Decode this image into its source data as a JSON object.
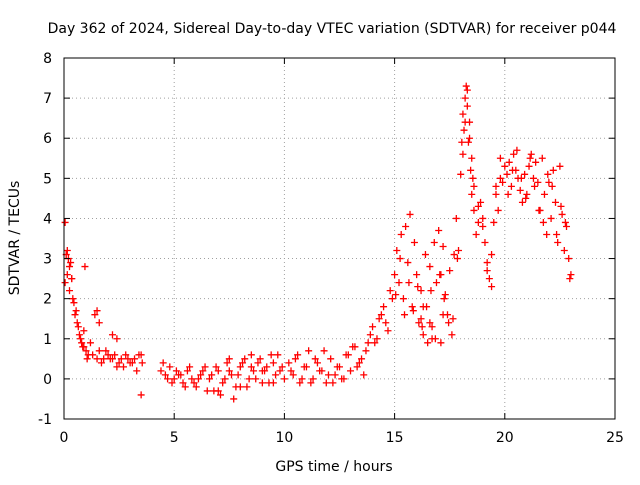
{
  "chart_data": {
    "type": "scatter",
    "title": "Day 362 of 2024, Sidereal Day-to-day VTEC variation (SDTVAR) for receiver p044",
    "xlabel": "GPS time / hours",
    "ylabel": "SDTVAR / TECUs",
    "xlim": [
      0,
      25
    ],
    "ylim": [
      -1,
      8
    ],
    "grid": true,
    "marker": "+",
    "colors": {
      "series": "#ff0000",
      "grid": "#a0a0a0",
      "axis": "#000000"
    },
    "x_ticks": [
      "0",
      "5",
      "10",
      "15",
      "20",
      "25"
    ],
    "y_ticks": [
      "-1",
      "0",
      "1",
      "2",
      "3",
      "4",
      "5",
      "6",
      "7",
      "8"
    ],
    "series": [
      {
        "name": "SDTVAR",
        "x": [
          0.05,
          0.1,
          0.15,
          0.2,
          0.25,
          0.3,
          0.35,
          0.4,
          0.5,
          0.6,
          0.7,
          0.8,
          0.9,
          1.0,
          1.1,
          1.2,
          1.4,
          1.6,
          1.8,
          2.0,
          2.2,
          2.4,
          2.6,
          2.8,
          3.0,
          3.2,
          3.4,
          3.55,
          0.05,
          0.15,
          0.25,
          0.35,
          0.45,
          0.55,
          0.65,
          0.75,
          0.85,
          0.95,
          1.05,
          1.3,
          1.5,
          1.7,
          1.9,
          2.1,
          2.3,
          2.5,
          2.7,
          2.9,
          3.1,
          3.3,
          3.5,
          1.5,
          1.6,
          2.2,
          2.4,
          0.9,
          3.5,
          4.4,
          4.6,
          4.8,
          5.0,
          5.2,
          5.4,
          5.6,
          5.8,
          6.0,
          6.2,
          6.4,
          6.6,
          6.8,
          7.0,
          7.2,
          7.4,
          7.6,
          7.8,
          8.0,
          8.2,
          8.4,
          8.6,
          8.8,
          9.0,
          9.2,
          9.4,
          9.6,
          9.8,
          10.0,
          4.5,
          4.7,
          4.9,
          5.1,
          5.3,
          5.5,
          5.7,
          5.9,
          6.1,
          6.3,
          6.5,
          6.7,
          6.9,
          7.1,
          7.3,
          7.5,
          7.7,
          7.9,
          8.1,
          8.3,
          8.5,
          8.7,
          8.9,
          9.1,
          9.3,
          9.5,
          9.7,
          9.9,
          7.0,
          7.5,
          8.0,
          8.5,
          9.0,
          9.5,
          10.2,
          10.4,
          10.6,
          10.8,
          11.0,
          11.2,
          11.4,
          11.6,
          11.8,
          12.0,
          12.2,
          12.4,
          12.6,
          12.8,
          13.0,
          13.2,
          13.4,
          13.6,
          13.8,
          14.0,
          14.2,
          14.4,
          14.6,
          14.8,
          15.0,
          10.3,
          10.5,
          10.7,
          10.9,
          11.1,
          11.3,
          11.5,
          11.7,
          11.9,
          12.1,
          12.3,
          12.5,
          12.7,
          12.9,
          13.1,
          13.3,
          13.5,
          13.7,
          13.9,
          14.1,
          14.3,
          14.5,
          14.7,
          14.9,
          15.1,
          15.2,
          15.3,
          15.4,
          15.5,
          15.6,
          15.7,
          15.8,
          15.9,
          16.0,
          16.1,
          16.2,
          16.3,
          16.4,
          16.5,
          16.6,
          16.7,
          16.8,
          16.9,
          17.0,
          17.1,
          17.2,
          17.3,
          17.4,
          17.5,
          17.6,
          17.7,
          17.8,
          17.9,
          18.0,
          15.05,
          15.25,
          15.45,
          15.65,
          15.85,
          16.05,
          16.25,
          16.45,
          16.65,
          16.85,
          17.05,
          17.25,
          17.45,
          17.65,
          17.85,
          18.05,
          18.1,
          18.15,
          18.2,
          18.25,
          18.3,
          18.35,
          18.4,
          18.45,
          18.5,
          18.55,
          18.6,
          18.7,
          18.8,
          18.9,
          19.0,
          19.1,
          19.2,
          19.3,
          19.4,
          19.5,
          19.6,
          19.7,
          19.8,
          19.9,
          20.0,
          18.1,
          18.2,
          18.3,
          18.4,
          18.5,
          18.6,
          18.8,
          19.0,
          19.2,
          19.4,
          19.6,
          19.8,
          20.1,
          20.2,
          20.3,
          20.4,
          20.5,
          20.6,
          20.7,
          20.8,
          20.9,
          21.0,
          21.1,
          21.2,
          21.3,
          21.4,
          21.5,
          21.6,
          21.7,
          21.8,
          21.9,
          22.0,
          22.1,
          22.2,
          22.3,
          22.4,
          22.5,
          22.6,
          22.7,
          22.8,
          22.9,
          23.0,
          20.15,
          20.35,
          20.55,
          20.75,
          20.95,
          21.15,
          21.35,
          21.55,
          21.75,
          21.95,
          22.15,
          22.35,
          22.55,
          22.75,
          22.95,
          16.6,
          16.7,
          17.1,
          17.2,
          16.2,
          16.3
        ],
        "y": [
          3.9,
          3.1,
          2.6,
          3.0,
          2.2,
          2.9,
          2.5,
          2.0,
          1.6,
          1.4,
          1.1,
          0.9,
          0.8,
          0.7,
          0.6,
          0.9,
          1.6,
          0.7,
          0.5,
          0.6,
          0.5,
          0.3,
          0.5,
          0.6,
          0.4,
          0.5,
          0.6,
          0.4,
          2.4,
          3.2,
          2.8,
          2.5,
          1.9,
          1.7,
          1.3,
          1.0,
          0.8,
          2.8,
          0.5,
          0.6,
          0.5,
          0.4,
          0.7,
          0.5,
          0.6,
          0.4,
          0.3,
          0.5,
          0.4,
          0.2,
          0.6,
          1.7,
          1.4,
          1.1,
          1.0,
          1.2,
          -0.4,
          0.2,
          0.1,
          0.3,
          0.0,
          0.1,
          -0.1,
          0.2,
          0.0,
          -0.2,
          0.1,
          0.3,
          0.0,
          -0.3,
          0.2,
          -0.1,
          0.4,
          0.1,
          -0.2,
          0.3,
          0.5,
          0.0,
          0.2,
          0.4,
          -0.1,
          0.3,
          0.6,
          0.1,
          0.2,
          0.0,
          0.4,
          0.0,
          -0.1,
          0.2,
          0.1,
          -0.2,
          0.3,
          -0.1,
          0.0,
          0.2,
          -0.3,
          0.1,
          0.3,
          -0.4,
          0.0,
          0.2,
          -0.5,
          0.1,
          0.4,
          -0.2,
          0.3,
          0.0,
          0.5,
          0.2,
          -0.1,
          0.4,
          0.6,
          0.3,
          -0.3,
          0.5,
          -0.2,
          0.6,
          0.2,
          -0.1,
          0.4,
          0.1,
          0.6,
          0.0,
          0.3,
          -0.1,
          0.5,
          0.2,
          0.7,
          0.1,
          -0.1,
          0.3,
          0.0,
          0.6,
          0.2,
          0.8,
          0.4,
          0.1,
          0.9,
          1.3,
          1.0,
          1.6,
          1.4,
          2.2,
          2.6,
          0.2,
          0.5,
          -0.1,
          0.3,
          0.7,
          0.0,
          0.4,
          0.2,
          -0.1,
          0.5,
          0.1,
          0.3,
          0.0,
          0.6,
          0.8,
          0.3,
          0.5,
          0.7,
          1.1,
          0.9,
          1.5,
          1.8,
          1.2,
          2.0,
          3.2,
          2.4,
          3.6,
          2.0,
          3.8,
          2.9,
          4.1,
          1.8,
          3.4,
          2.6,
          1.4,
          2.2,
          1.1,
          3.1,
          0.9,
          2.8,
          1.3,
          3.4,
          2.4,
          3.7,
          2.6,
          3.3,
          2.1,
          1.6,
          2.7,
          1.1,
          3.1,
          4.0,
          3.2,
          5.1,
          2.1,
          3.0,
          1.6,
          2.4,
          1.7,
          2.3,
          1.3,
          1.8,
          2.2,
          1.0,
          2.6,
          2.0,
          1.4,
          1.5,
          3.0,
          5.9,
          6.6,
          6.2,
          7.0,
          7.3,
          6.8,
          5.9,
          6.4,
          5.2,
          4.6,
          5.0,
          4.2,
          3.6,
          3.9,
          4.4,
          4.0,
          3.4,
          2.9,
          2.5,
          3.1,
          3.9,
          4.6,
          4.2,
          5.0,
          4.9,
          5.3,
          5.6,
          6.4,
          7.2,
          6.0,
          5.5,
          4.8,
          4.3,
          3.8,
          2.7,
          2.3,
          4.8,
          5.5,
          5.1,
          5.4,
          4.8,
          5.6,
          5.2,
          5.0,
          4.7,
          4.4,
          5.1,
          4.6,
          5.3,
          5.6,
          5.0,
          5.4,
          4.9,
          4.2,
          5.5,
          4.6,
          3.6,
          4.9,
          4.0,
          5.2,
          4.4,
          3.4,
          5.3,
          4.1,
          3.2,
          3.8,
          3.0,
          2.6,
          4.6,
          5.2,
          5.7,
          5.0,
          4.5,
          5.5,
          4.8,
          4.2,
          3.9,
          5.1,
          4.8,
          3.6,
          4.3,
          3.9,
          2.5,
          1.4,
          1.0,
          0.9,
          1.6,
          1.5,
          1.8
        ]
      }
    ]
  }
}
